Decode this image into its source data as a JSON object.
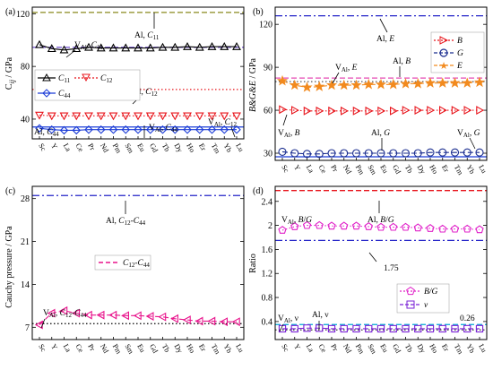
{
  "chart_data": [
    {
      "id": "a",
      "type": "line",
      "panel_label": "(a)",
      "ylabel": "C_ij / GPa",
      "ylim": [
        25,
        125
      ],
      "yticks": [
        40,
        80,
        120
      ],
      "categories": [
        "Sc",
        "Y",
        "La",
        "Ce",
        "Pr",
        "Nd",
        "Pm",
        "Sm",
        "Eu",
        "Gd",
        "Tb",
        "Dy",
        "Ho",
        "Er",
        "Tm",
        "Yb",
        "Lu"
      ],
      "series": [
        {
          "name": "C11",
          "color": "#000000",
          "marker": "triangle-up",
          "dash": "solid",
          "values": [
            96.5,
            93.5,
            92.5,
            93.5,
            94.5,
            94.0,
            94.0,
            94.0,
            94.0,
            94.0,
            94.5,
            94.5,
            95.0,
            94.5,
            95.0,
            95.0,
            95.0
          ]
        },
        {
          "name": "C12",
          "color": "#e8141b",
          "marker": "triangle-down",
          "dash": "dotted",
          "values": [
            43.0,
            42.5,
            42.5,
            42.5,
            42.5,
            42.5,
            42.5,
            42.5,
            42.5,
            42.5,
            42.5,
            42.5,
            42.5,
            42.5,
            42.5,
            42.5,
            42.5
          ]
        },
        {
          "name": "C44",
          "color": "#1a3bd6",
          "marker": "diamond",
          "dash": "solid",
          "values": [
            33.0,
            32.0,
            31.5,
            31.5,
            32.0,
            32.0,
            32.0,
            32.0,
            32.0,
            32.0,
            32.0,
            32.0,
            32.0,
            32.0,
            32.0,
            32.0,
            32.0
          ]
        }
      ],
      "reference_lines": [
        {
          "label": "Al, C11",
          "value": 121,
          "color": "#8a8a1e",
          "dash": "dashed"
        },
        {
          "label": "Al, C12",
          "value": 62.5,
          "color": "#e8141b",
          "dash": "dotted"
        },
        {
          "label": "Al, C44",
          "value": 34.0,
          "color": "#1a3bd6",
          "dash": "solid"
        },
        {
          "label": "",
          "value": 94.5,
          "color": "#7d5fd3",
          "dash": "dashed"
        }
      ],
      "annotations": [
        "VAl, C11",
        "Al, C11",
        "Al, C12",
        "Al, C44",
        "VAl, C44",
        "VAl, C12"
      ],
      "legend": [
        "C11",
        "C12",
        "C44"
      ]
    },
    {
      "id": "b",
      "type": "line",
      "panel_label": "(b)",
      "ylabel": "B&G&E / GPa",
      "ylim": [
        25,
        132
      ],
      "yticks": [
        30,
        60,
        90,
        120
      ],
      "categories": [
        "Sc",
        "Y",
        "La",
        "Ce",
        "Pr",
        "Nd",
        "Pm",
        "Sm",
        "Eu",
        "Gd",
        "Tb",
        "Dy",
        "Ho",
        "Er",
        "Tm",
        "Yb",
        "Lu"
      ],
      "series": [
        {
          "name": "B",
          "color": "#e8141b",
          "marker": "triangle-right",
          "dash": "dotted",
          "values": [
            60.5,
            60.0,
            59.5,
            59.5,
            59.5,
            59.5,
            59.5,
            59.5,
            59.5,
            59.5,
            60.0,
            60.0,
            60.0,
            60.0,
            60.0,
            60.0,
            60.0
          ]
        },
        {
          "name": "G",
          "color": "#1a2d8f",
          "marker": "circle",
          "dash": "dashed",
          "values": [
            31.0,
            30.0,
            29.5,
            29.5,
            30.0,
            30.0,
            30.0,
            30.0,
            30.0,
            30.0,
            30.0,
            30.0,
            30.5,
            30.5,
            30.5,
            30.5,
            30.5
          ]
        },
        {
          "name": "E",
          "color": "#f28a1e",
          "marker": "star",
          "dash": "dashed",
          "values": [
            80.5,
            77.5,
            76.0,
            76.5,
            77.5,
            77.5,
            77.5,
            78.0,
            78.0,
            78.0,
            78.5,
            78.5,
            79.0,
            79.0,
            79.0,
            79.0,
            79.5
          ]
        }
      ],
      "reference_lines": [
        {
          "label": "Al, E",
          "value": 126,
          "color": "#2323c8",
          "dash": "dashdot"
        },
        {
          "label": "Al, B",
          "value": 82.5,
          "color": "#e64ab4",
          "dash": "dashed"
        },
        {
          "label": "",
          "value": 80.0,
          "color": "#555555",
          "dash": "dotted"
        },
        {
          "label": "Al, G",
          "value": 27.5,
          "color": "#1a3bd6",
          "dash": "solid"
        }
      ],
      "annotations": [
        "Al, E",
        "VAl, E",
        "Al, B",
        "VAl, B",
        "Al, G",
        "VAl, G"
      ],
      "legend": [
        "B",
        "G",
        "E"
      ]
    },
    {
      "id": "c",
      "type": "line",
      "panel_label": "(c)",
      "ylabel": "Cauchy pressure / GPa",
      "ylim": [
        5,
        30
      ],
      "yticks": [
        7,
        14,
        21,
        28
      ],
      "categories": [
        "Sc",
        "Y",
        "La",
        "Ce",
        "Pr",
        "Nd",
        "Pm",
        "Sm",
        "Eu",
        "Gd",
        "Tb",
        "Dy",
        "Ho",
        "Er",
        "Tm",
        "Yb",
        "Lu"
      ],
      "series": [
        {
          "name": "C12-C44",
          "color": "#e8148c",
          "marker": "triangle-left",
          "dash": "dashed",
          "values": [
            7.4,
            9.3,
            9.7,
            9.3,
            9.0,
            9.0,
            9.0,
            8.9,
            8.9,
            8.8,
            8.7,
            8.4,
            8.2,
            8.0,
            8.0,
            7.9,
            7.9
          ]
        }
      ],
      "reference_lines": [
        {
          "label": "Al, C12-C44",
          "value": 28.5,
          "color": "#2323c8",
          "dash": "dashdot"
        },
        {
          "label": "",
          "value": 7.6,
          "color": "#000000",
          "dash": "dotted"
        }
      ],
      "annotations": [
        "Al, C12-C44",
        "VAl, C12-C44"
      ],
      "legend": [
        "C12-C44"
      ]
    },
    {
      "id": "d",
      "type": "line",
      "panel_label": "(d)",
      "ylabel": "Ratio",
      "ylim": [
        0.1,
        2.65
      ],
      "yticks": [
        0.4,
        0.8,
        1.2,
        1.6,
        2.0,
        2.4
      ],
      "categories": [
        "Sc",
        "Y",
        "La",
        "Ce",
        "Pr",
        "Nd",
        "Pm",
        "Sm",
        "Eu",
        "Gd",
        "Tb",
        "Dy",
        "Ho",
        "Er",
        "Tm",
        "Yb",
        "Lu"
      ],
      "series": [
        {
          "name": "B/G",
          "color": "#e020c8",
          "marker": "pentagon",
          "dash": "dotted",
          "values": [
            1.92,
            1.98,
            2.0,
            2.0,
            1.99,
            1.99,
            1.99,
            1.98,
            1.97,
            1.97,
            1.97,
            1.96,
            1.95,
            1.94,
            1.94,
            1.94,
            1.93
          ]
        },
        {
          "name": "ν",
          "color": "#7a22d6",
          "marker": "square",
          "dash": "dashed",
          "values": [
            0.28,
            0.28,
            0.29,
            0.29,
            0.28,
            0.28,
            0.28,
            0.28,
            0.28,
            0.28,
            0.28,
            0.28,
            0.28,
            0.28,
            0.28,
            0.28,
            0.28
          ]
        }
      ],
      "reference_lines": [
        {
          "label": "Al, B/G",
          "value": 2.58,
          "color": "#e8141b",
          "dash": "dashed"
        },
        {
          "label": "1.75",
          "value": 1.75,
          "color": "#2323c8",
          "dash": "dashdot"
        },
        {
          "label": "Al, ν",
          "value": 0.35,
          "color": "#00a6d6",
          "dash": "dashed"
        },
        {
          "label": "0.26",
          "value": 0.26,
          "color": "#333333",
          "dash": "dotted"
        }
      ],
      "annotations": [
        "VAl, B/G",
        "Al, B/G",
        "1.75",
        "VAl, ν",
        "Al, ν",
        "0.26"
      ],
      "legend": [
        "B/G",
        "ν"
      ]
    }
  ]
}
